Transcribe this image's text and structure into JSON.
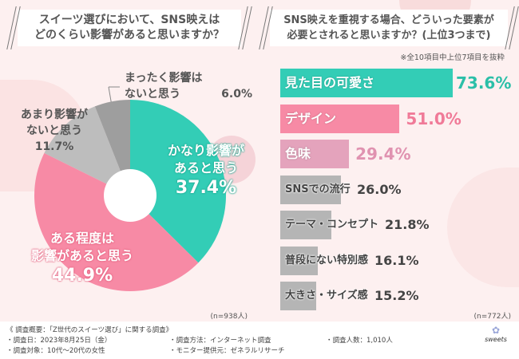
{
  "colors": {
    "teal": "#33cdb6",
    "pink": "#f78aa5",
    "mauve": "#e4a3bc",
    "gray_light": "#bdbdbd",
    "gray_dark": "#9e9e9e",
    "gray_bar": "#b5b5b5"
  },
  "left": {
    "title_line1": "スイーツ選びにおいて、SNS映えは",
    "title_line2": "どのくらい影響があると思いますか？",
    "n": "(n=938人)"
  },
  "right": {
    "title_line1": "SNS映えを重視する場合、どういった要素が",
    "title_line2": "必要とされると思いますか？(上位3つまで)",
    "note": "※全10項目中上位7項目を抜粋",
    "n": "(n=772人)"
  },
  "chart_data": [
    {
      "type": "pie",
      "title": "スイーツ選びにおいて、SNS映えはどのくらい影響があると思いますか？",
      "slices": [
        {
          "label_line1": "かなり影響が",
          "label_line2": "あると思う",
          "value": 37.4,
          "display": "37.4%",
          "color": "#33cdb6"
        },
        {
          "label_line1": "ある程度は",
          "label_line2": "影響があると思う",
          "value": 44.9,
          "display": "44.9%",
          "color": "#f78aa5"
        },
        {
          "label_line1": "あまり影響が",
          "label_line2": "ないと思う",
          "value": 11.7,
          "display": "11.7%",
          "color": "#bdbdbd"
        },
        {
          "label_line1": "まったく影響は",
          "label_line2": "ないと思う",
          "value": 6.0,
          "display": "6.0%",
          "color": "#9e9e9e"
        }
      ],
      "n": "n=938人"
    },
    {
      "type": "bar",
      "orientation": "horizontal",
      "title": "SNS映えを重視する場合、どういった要素が必要とされると思いますか？(上位3つまで)",
      "categories": [
        "見た目の可愛さ",
        "デザイン",
        "色味",
        "SNSでの流行",
        "テーマ・コンセプト",
        "普段にない特別感",
        "大きさ・サイズ感"
      ],
      "values": [
        73.6,
        51.0,
        29.4,
        26.0,
        21.8,
        16.1,
        15.2
      ],
      "display": [
        "73.6%",
        "51.0%",
        "29.4%",
        "26.0%",
        "21.8%",
        "16.1%",
        "15.2%"
      ],
      "colors": [
        "#33cdb6",
        "#f78aa5",
        "#e4a3bc",
        "#b5b5b5",
        "#b5b5b5",
        "#b5b5b5",
        "#b5b5b5"
      ],
      "xlim": [
        0,
        100
      ],
      "n": "n=772人"
    }
  ],
  "footer": {
    "heading": "《 調査概要：「Z世代のスイーツ選び」に関する調査》",
    "date": "・調査日：2023年8月25日（金）",
    "target": "・調査対象：10代〜20代の女性",
    "method": "・調査方法：インターネット調査",
    "provider": "・モニター提供元：ゼネラルリサーチ",
    "count": "・調査人数：1,010人",
    "logo_text": "sweets"
  }
}
